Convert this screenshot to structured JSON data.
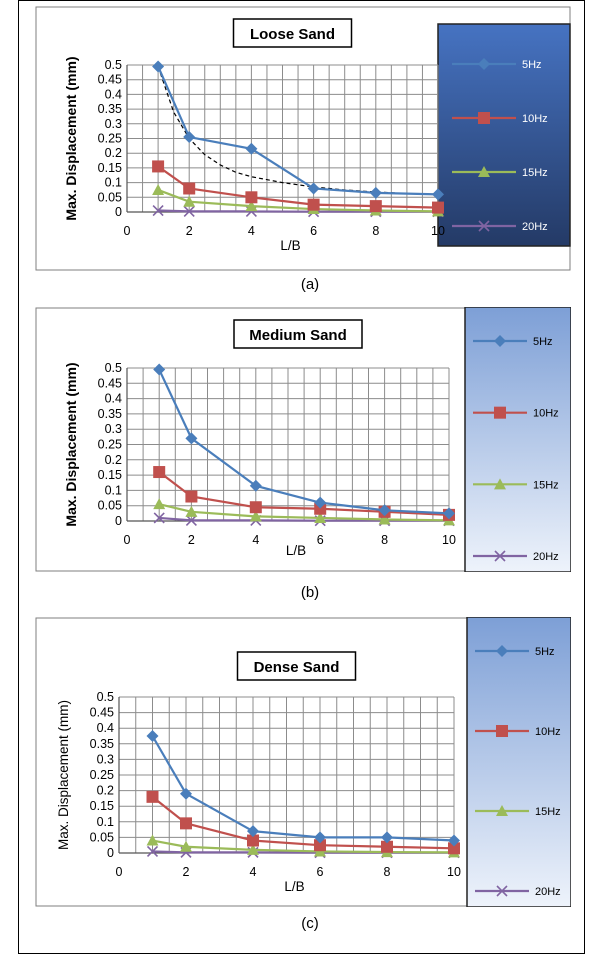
{
  "panels": [
    {
      "caption": "(a)",
      "chart_data": {
        "type": "line",
        "title": "Loose Sand",
        "xlabel": "L/B",
        "ylabel": "Max. Displacement (mm)",
        "xlim": [
          0,
          10
        ],
        "ylim": [
          0,
          0.5
        ],
        "xticks": [
          "0",
          "2",
          "4",
          "6",
          "8",
          "10"
        ],
        "yticks": [
          "0",
          "0.05",
          "0.1",
          "0.15",
          "0.2",
          "0.25",
          "0.3",
          "0.35",
          "0.4",
          "0.45",
          "0.5"
        ],
        "grid": true,
        "legend": "right",
        "x": [
          1,
          2,
          4,
          6,
          8,
          10
        ],
        "series": [
          {
            "name": "5Hz",
            "values": [
              0.495,
              0.255,
              0.215,
              0.08,
              0.065,
              0.06
            ],
            "color": "#4a7ebb",
            "marker": "diamond"
          },
          {
            "name": "10Hz",
            "values": [
              0.155,
              0.08,
              0.05,
              0.025,
              0.02,
              0.015
            ],
            "color": "#c0504d",
            "marker": "square"
          },
          {
            "name": "15Hz",
            "values": [
              0.075,
              0.035,
              0.02,
              0.01,
              0.005,
              0.002
            ],
            "color": "#9bbb59",
            "marker": "triangle"
          },
          {
            "name": "20Hz",
            "values": [
              0.005,
              0.002,
              0.002,
              0.001,
              0.001,
              0.001
            ],
            "color": "#8064a2",
            "marker": "x"
          }
        ],
        "trendline": {
          "x": [
            1,
            1.5,
            2,
            2.5,
            3,
            3.5,
            4,
            5,
            6,
            7,
            8,
            9,
            10
          ],
          "values": [
            0.495,
            0.34,
            0.25,
            0.195,
            0.16,
            0.135,
            0.12,
            0.1,
            0.085,
            0.075,
            0.068,
            0.063,
            0.06
          ]
        }
      }
    },
    {
      "caption": "(b)",
      "chart_data": {
        "type": "line",
        "title": "Medium Sand",
        "xlabel": "L/B",
        "ylabel": "Max. Displacement (mm)",
        "xlim": [
          0,
          10
        ],
        "ylim": [
          0,
          0.5
        ],
        "xticks": [
          "0",
          "2",
          "4",
          "6",
          "8",
          "10"
        ],
        "yticks": [
          "0",
          "0.05",
          "0.1",
          "0.15",
          "0.2",
          "0.25",
          "0.3",
          "0.35",
          "0.4",
          "0.45",
          "0.5"
        ],
        "grid": true,
        "legend": "right",
        "x": [
          1,
          2,
          4,
          6,
          8,
          10
        ],
        "series": [
          {
            "name": "5Hz",
            "values": [
              0.495,
              0.27,
              0.115,
              0.06,
              0.035,
              0.025
            ],
            "color": "#4a7ebb",
            "marker": "diamond"
          },
          {
            "name": "10Hz",
            "values": [
              0.16,
              0.08,
              0.045,
              0.04,
              0.03,
              0.02
            ],
            "color": "#c0504d",
            "marker": "square"
          },
          {
            "name": "15Hz",
            "values": [
              0.055,
              0.03,
              0.015,
              0.01,
              0.005,
              0.002
            ],
            "color": "#9bbb59",
            "marker": "triangle"
          },
          {
            "name": "20Hz",
            "values": [
              0.01,
              0.002,
              0.002,
              0.001,
              0.001,
              0.001
            ],
            "color": "#8064a2",
            "marker": "x"
          }
        ]
      }
    },
    {
      "caption": "(c)",
      "chart_data": {
        "type": "line",
        "title": "Dense Sand",
        "xlabel": "L/B",
        "ylabel": "Max. Displacement (mm)",
        "xlim": [
          0,
          10
        ],
        "ylim": [
          0,
          0.5
        ],
        "xticks": [
          "0",
          "2",
          "4",
          "6",
          "8",
          "10"
        ],
        "yticks": [
          "0",
          "0.05",
          "0.1",
          "0.15",
          "0.2",
          "0.25",
          "0.3",
          "0.35",
          "0.4",
          "0.45",
          "0.5"
        ],
        "grid": true,
        "legend": "right",
        "x": [
          1,
          2,
          4,
          6,
          8,
          10
        ],
        "series": [
          {
            "name": "5Hz",
            "values": [
              0.375,
              0.19,
              0.07,
              0.05,
              0.05,
              0.04
            ],
            "color": "#4a7ebb",
            "marker": "diamond"
          },
          {
            "name": "10Hz",
            "values": [
              0.18,
              0.095,
              0.04,
              0.025,
              0.02,
              0.015
            ],
            "color": "#c0504d",
            "marker": "square"
          },
          {
            "name": "15Hz",
            "values": [
              0.04,
              0.02,
              0.01,
              0.005,
              0.003,
              0.002
            ],
            "color": "#9bbb59",
            "marker": "triangle"
          },
          {
            "name": "20Hz",
            "values": [
              0.005,
              0.002,
              0.002,
              0.001,
              0.001,
              0.001
            ],
            "color": "#8064a2",
            "marker": "x"
          }
        ]
      }
    }
  ]
}
